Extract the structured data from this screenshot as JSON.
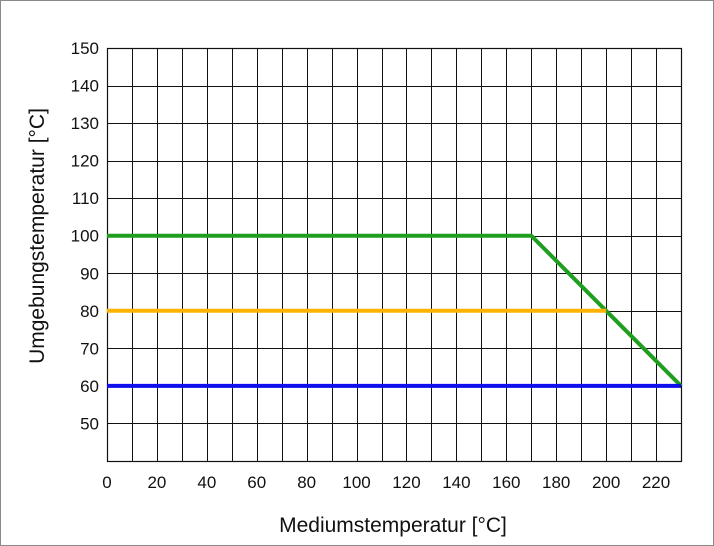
{
  "chart_data": {
    "type": "line",
    "title": "",
    "xlabel": "Mediumstemperatur [°C]",
    "ylabel": "Umgebungstemperatur [°C]",
    "xlim": [
      0,
      230
    ],
    "ylim": [
      40,
      150
    ],
    "x_ticks": [
      0,
      20,
      40,
      60,
      80,
      100,
      120,
      140,
      160,
      180,
      200,
      220
    ],
    "y_ticks": [
      50,
      60,
      70,
      80,
      90,
      100,
      110,
      120,
      130,
      140,
      150
    ],
    "x_grid_step": 10,
    "y_grid_step": 10,
    "grid": true,
    "series": [
      {
        "color": "#1f9e1f",
        "x": [
          0,
          170,
          230
        ],
        "y": [
          100,
          100,
          60
        ]
      },
      {
        "color": "#ffb300",
        "x": [
          0,
          200
        ],
        "y": [
          80,
          80
        ]
      },
      {
        "color": "#1010ee",
        "x": [
          0,
          230
        ],
        "y": [
          60,
          60
        ]
      }
    ]
  }
}
